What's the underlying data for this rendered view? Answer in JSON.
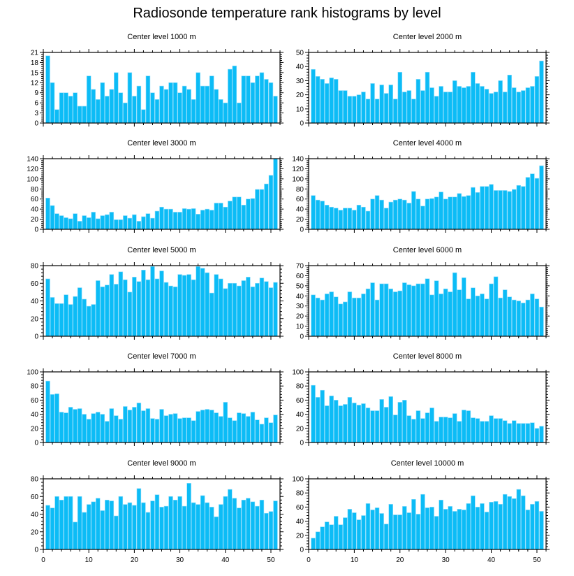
{
  "title": "Radiosonde temperature rank histograms by level",
  "chart_data": [
    {
      "type": "bar",
      "title": "Center level 1000 m",
      "xlim": [
        0,
        52
      ],
      "ylim": [
        0,
        21
      ],
      "xticks": [
        0,
        10,
        20,
        30,
        40,
        50
      ],
      "yticks": [
        0,
        3,
        6,
        9,
        12,
        15,
        18,
        21
      ],
      "values": [
        20,
        12,
        4,
        9,
        9,
        8,
        9,
        5,
        5,
        14,
        10,
        7,
        12,
        8,
        10,
        15,
        9,
        6,
        15,
        8,
        11,
        4,
        14,
        9,
        7,
        11,
        10,
        12,
        12,
        9,
        11,
        10,
        7,
        15,
        11,
        11,
        14,
        10,
        7,
        6,
        16,
        17,
        6,
        14,
        14,
        12,
        14,
        15,
        13,
        12,
        8
      ]
    },
    {
      "type": "bar",
      "title": "Center level 2000 m",
      "xlim": [
        0,
        52
      ],
      "ylim": [
        0,
        50
      ],
      "xticks": [
        0,
        10,
        20,
        30,
        40,
        50
      ],
      "yticks": [
        0,
        10,
        20,
        30,
        40,
        50
      ],
      "values": [
        38,
        33,
        31,
        28,
        32,
        31,
        23,
        23,
        19,
        19,
        20,
        22,
        17,
        28,
        17,
        27,
        21,
        27,
        17,
        36,
        22,
        23,
        17,
        31,
        23,
        36,
        25,
        19,
        26,
        22,
        22,
        30,
        26,
        25,
        26,
        36,
        28,
        26,
        24,
        21,
        22,
        30,
        22,
        34,
        25,
        22,
        23,
        25,
        26,
        33,
        44
      ]
    },
    {
      "type": "bar",
      "title": "Center level 3000 m",
      "xlim": [
        0,
        52
      ],
      "ylim": [
        0,
        140
      ],
      "xticks": [
        0,
        10,
        20,
        30,
        40,
        50
      ],
      "yticks": [
        0,
        20,
        40,
        60,
        80,
        100,
        120,
        140
      ],
      "values": [
        62,
        47,
        31,
        27,
        23,
        21,
        31,
        16,
        27,
        23,
        34,
        21,
        27,
        29,
        34,
        19,
        19,
        27,
        22,
        29,
        16,
        25,
        31,
        22,
        36,
        44,
        40,
        40,
        34,
        34,
        41,
        40,
        41,
        30,
        38,
        40,
        38,
        52,
        52,
        44,
        56,
        64,
        64,
        48,
        60,
        61,
        79,
        79,
        90,
        107,
        140
      ]
    },
    {
      "type": "bar",
      "title": "Center level 4000 m",
      "xlim": [
        0,
        52
      ],
      "ylim": [
        0,
        140
      ],
      "xticks": [
        0,
        10,
        20,
        30,
        40,
        50
      ],
      "yticks": [
        0,
        20,
        40,
        60,
        80,
        100,
        120,
        140
      ],
      "values": [
        67,
        58,
        56,
        48,
        44,
        42,
        38,
        42,
        42,
        38,
        48,
        44,
        36,
        60,
        67,
        58,
        42,
        54,
        58,
        60,
        58,
        52,
        75,
        60,
        46,
        60,
        61,
        64,
        74,
        60,
        64,
        64,
        71,
        65,
        67,
        83,
        73,
        85,
        85,
        89,
        77,
        77,
        77,
        75,
        79,
        87,
        85,
        103,
        110,
        101,
        126
      ]
    },
    {
      "type": "bar",
      "title": "Center level 5000 m",
      "xlim": [
        0,
        52
      ],
      "ylim": [
        0,
        80
      ],
      "xticks": [
        0,
        10,
        20,
        30,
        40,
        50
      ],
      "yticks": [
        0,
        20,
        40,
        60,
        80
      ],
      "values": [
        65,
        44,
        37,
        37,
        47,
        36,
        45,
        55,
        42,
        34,
        36,
        63,
        56,
        58,
        70,
        59,
        73,
        64,
        50,
        67,
        62,
        75,
        64,
        79,
        65,
        74,
        61,
        57,
        56,
        70,
        69,
        70,
        64,
        79,
        77,
        72,
        49,
        70,
        65,
        54,
        60,
        60,
        57,
        63,
        67,
        56,
        60,
        66,
        62,
        55,
        61
      ]
    },
    {
      "type": "bar",
      "title": "Center level 6000 m",
      "xlim": [
        0,
        52
      ],
      "ylim": [
        0,
        70
      ],
      "xticks": [
        0,
        10,
        20,
        30,
        40,
        50
      ],
      "yticks": [
        0,
        10,
        20,
        30,
        40,
        50,
        60,
        70
      ],
      "values": [
        41,
        38,
        36,
        42,
        44,
        39,
        32,
        34,
        44,
        38,
        38,
        42,
        47,
        53,
        36,
        52,
        52,
        47,
        44,
        45,
        53,
        51,
        50,
        52,
        52,
        57,
        41,
        55,
        42,
        47,
        44,
        63,
        46,
        58,
        37,
        48,
        40,
        42,
        37,
        52,
        59,
        38,
        46,
        39,
        36,
        35,
        33,
        36,
        42,
        37,
        29
      ]
    },
    {
      "type": "bar",
      "title": "Center level 7000 m",
      "xlim": [
        0,
        52
      ],
      "ylim": [
        0,
        100
      ],
      "xticks": [
        0,
        10,
        20,
        30,
        40,
        50
      ],
      "yticks": [
        0,
        20,
        40,
        60,
        80,
        100
      ],
      "values": [
        87,
        68,
        69,
        43,
        42,
        50,
        47,
        48,
        40,
        33,
        41,
        43,
        40,
        30,
        48,
        38,
        33,
        51,
        46,
        50,
        56,
        45,
        48,
        34,
        33,
        47,
        38,
        40,
        41,
        34,
        35,
        35,
        31,
        44,
        46,
        47,
        46,
        42,
        37,
        57,
        35,
        31,
        42,
        41,
        37,
        43,
        32,
        26,
        35,
        28,
        39
      ]
    },
    {
      "type": "bar",
      "title": "Center level 8000 m",
      "xlim": [
        0,
        52
      ],
      "ylim": [
        0,
        100
      ],
      "xticks": [
        0,
        10,
        20,
        30,
        40,
        50
      ],
      "yticks": [
        0,
        20,
        40,
        60,
        80,
        100
      ],
      "values": [
        81,
        64,
        74,
        52,
        66,
        60,
        52,
        54,
        64,
        56,
        53,
        55,
        49,
        45,
        45,
        61,
        50,
        65,
        39,
        57,
        60,
        38,
        33,
        45,
        34,
        42,
        49,
        30,
        36,
        36,
        35,
        41,
        30,
        46,
        45,
        35,
        34,
        30,
        30,
        38,
        34,
        34,
        31,
        27,
        31,
        27,
        27,
        27,
        28,
        20,
        23
      ]
    },
    {
      "type": "bar",
      "title": "Center level 9000 m",
      "xlim": [
        0,
        52
      ],
      "ylim": [
        0,
        80
      ],
      "xticks": [
        0,
        10,
        20,
        30,
        40,
        50
      ],
      "yticks": [
        0,
        20,
        40,
        60,
        80
      ],
      "values": [
        50,
        47,
        60,
        56,
        60,
        60,
        31,
        60,
        42,
        51,
        54,
        58,
        44,
        56,
        55,
        38,
        60,
        51,
        53,
        50,
        69,
        53,
        42,
        55,
        62,
        48,
        49,
        60,
        56,
        60,
        49,
        75,
        53,
        51,
        61,
        53,
        48,
        37,
        51,
        60,
        68,
        58,
        47,
        56,
        58,
        54,
        49,
        56,
        41,
        43,
        55
      ]
    },
    {
      "type": "bar",
      "title": "Center level 10000 m",
      "xlim": [
        0,
        52
      ],
      "ylim": [
        0,
        100
      ],
      "xticks": [
        0,
        10,
        20,
        30,
        40,
        50
      ],
      "yticks": [
        0,
        20,
        40,
        60,
        80,
        100
      ],
      "values": [
        16,
        25,
        32,
        39,
        35,
        47,
        35,
        45,
        57,
        52,
        42,
        48,
        65,
        56,
        59,
        51,
        36,
        64,
        49,
        49,
        61,
        52,
        71,
        50,
        78,
        59,
        60,
        47,
        70,
        57,
        61,
        54,
        57,
        56,
        65,
        76,
        60,
        65,
        53,
        67,
        68,
        64,
        78,
        75,
        72,
        85,
        76,
        56,
        64,
        68,
        54
      ]
    }
  ],
  "colors": {
    "bar": "#0cbcf6",
    "bar_edge": "#8fdcfb",
    "axis": "#000000"
  }
}
